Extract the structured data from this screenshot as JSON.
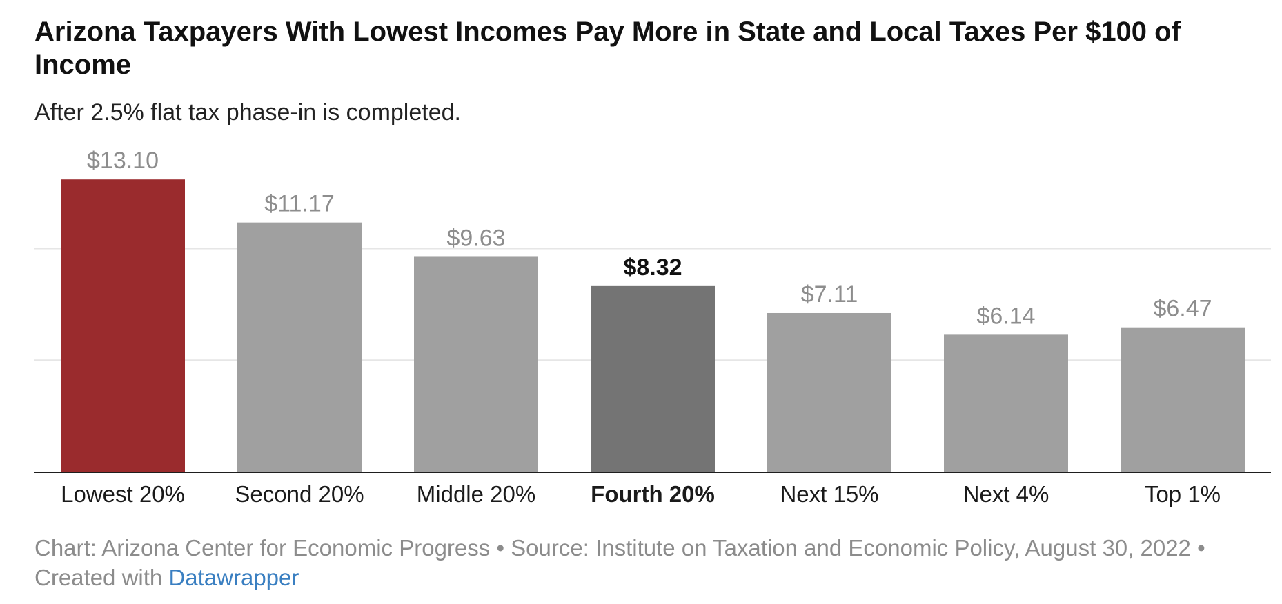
{
  "title": "Arizona Taxpayers With Lowest Incomes Pay More in State and Local Taxes Per $100 of Income",
  "subtitle": "After 2.5% flat tax phase-in is completed.",
  "footer": {
    "text": "Chart: Arizona Center for Economic Progress • Source: Institute on Taxation and Economic Policy, August 30, 2022 • Created with ",
    "link_label": "Datawrapper"
  },
  "chart_data": {
    "type": "bar",
    "categories": [
      "Lowest 20%",
      "Second 20%",
      "Middle 20%",
      "Fourth 20%",
      "Next 15%",
      "Next 4%",
      "Top 1%"
    ],
    "values": [
      13.1,
      11.17,
      9.63,
      8.32,
      7.11,
      6.14,
      6.47
    ],
    "data_labels": [
      "$13.10",
      "$11.17",
      "$9.63",
      "$8.32",
      "$7.11",
      "$6.14",
      "$6.47"
    ],
    "highlighted_category": "Fourth 20%",
    "ylim": [
      0,
      15
    ],
    "gridlines": [
      5,
      10
    ],
    "grid": true,
    "colors": {
      "default_bar": "#a0a0a0",
      "Lowest 20%": "#9a2b2d",
      "Fourth 20%": "#747474",
      "label_default": "#8d8d8d",
      "label_highlight": "#111111",
      "gridline": "#e6e6e6",
      "baseline": "#1e1e1e",
      "category_text": "#1a1a1a"
    }
  }
}
